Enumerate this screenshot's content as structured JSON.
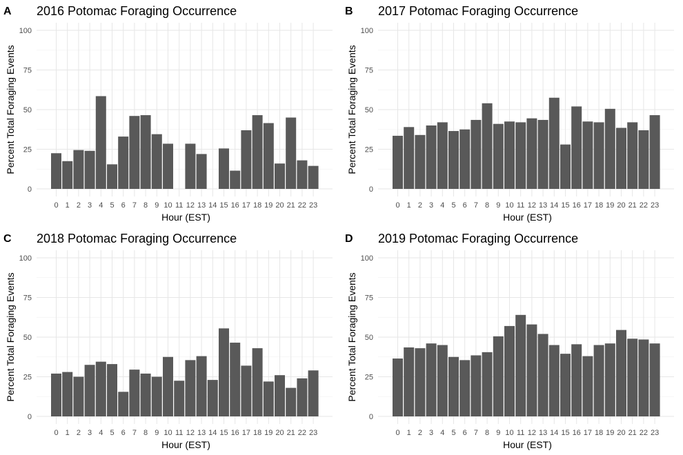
{
  "chart_data": [
    {
      "panel_label": "A",
      "type": "bar",
      "title": "2016 Potomac Foraging Occurrence",
      "xlabel": "Hour (EST)",
      "ylabel": "Percent Total Foraging Events",
      "categories": [
        "0",
        "1",
        "2",
        "3",
        "4",
        "5",
        "6",
        "7",
        "8",
        "9",
        "10",
        "11",
        "12",
        "13",
        "14",
        "15",
        "16",
        "17",
        "18",
        "19",
        "20",
        "21",
        "22",
        "23"
      ],
      "values": [
        22.5,
        17.5,
        24.5,
        24,
        58.5,
        15.5,
        33,
        46,
        46.5,
        34.5,
        28.5,
        null,
        28.5,
        22,
        null,
        25.5,
        11.5,
        37,
        46.5,
        41.5,
        16,
        45,
        18,
        14.5
      ],
      "ylim": [
        0,
        100
      ],
      "yticks": [
        0,
        25,
        50,
        75,
        100
      ],
      "bar_color": "#595959",
      "grid": true
    },
    {
      "panel_label": "B",
      "type": "bar",
      "title": "2017 Potomac Foraging Occurrence",
      "xlabel": "Hour (EST)",
      "ylabel": "Percent Total Foraging Events",
      "categories": [
        "0",
        "1",
        "2",
        "3",
        "4",
        "5",
        "6",
        "7",
        "8",
        "9",
        "10",
        "11",
        "12",
        "13",
        "14",
        "15",
        "16",
        "17",
        "18",
        "19",
        "20",
        "21",
        "22",
        "23"
      ],
      "values": [
        33.5,
        39,
        34,
        40,
        42,
        36.5,
        37.5,
        43.5,
        54,
        41,
        42.5,
        42,
        44.5,
        43.5,
        57.5,
        28,
        52,
        42.5,
        42,
        50.5,
        38.5,
        42,
        37,
        46.5
      ],
      "ylim": [
        0,
        100
      ],
      "yticks": [
        0,
        25,
        50,
        75,
        100
      ],
      "bar_color": "#595959",
      "grid": true
    },
    {
      "panel_label": "C",
      "type": "bar",
      "title": "2018 Potomac Foraging Occurrence",
      "xlabel": "Hour (EST)",
      "ylabel": "Percent Total Foraging Events",
      "categories": [
        "0",
        "1",
        "2",
        "3",
        "4",
        "5",
        "6",
        "7",
        "8",
        "9",
        "10",
        "11",
        "12",
        "13",
        "14",
        "15",
        "16",
        "17",
        "18",
        "19",
        "20",
        "21",
        "22",
        "23"
      ],
      "values": [
        27,
        28,
        25,
        32.5,
        34.5,
        33,
        15.5,
        29.5,
        27,
        25,
        37.5,
        22.5,
        35.5,
        38,
        23,
        55.5,
        46.5,
        32,
        43,
        22,
        26,
        18,
        24,
        29
      ],
      "ylim": [
        0,
        100
      ],
      "yticks": [
        0,
        25,
        50,
        75,
        100
      ],
      "bar_color": "#595959",
      "grid": true
    },
    {
      "panel_label": "D",
      "type": "bar",
      "title": "2019 Potomac Foraging Occurrence",
      "xlabel": "Hour (EST)",
      "ylabel": "Percent Total Foraging Events",
      "categories": [
        "0",
        "1",
        "2",
        "3",
        "4",
        "5",
        "6",
        "7",
        "8",
        "9",
        "10",
        "11",
        "12",
        "13",
        "14",
        "15",
        "16",
        "17",
        "18",
        "19",
        "20",
        "21",
        "22",
        "23"
      ],
      "values": [
        36.5,
        43.5,
        43,
        46,
        45,
        37.5,
        35.5,
        38.5,
        40.5,
        50.5,
        57,
        64,
        58,
        52,
        45,
        39.5,
        45.5,
        38,
        45,
        46,
        54.5,
        49,
        48.5,
        46
      ],
      "ylim": [
        0,
        100
      ],
      "yticks": [
        0,
        25,
        50,
        75,
        100
      ],
      "bar_color": "#595959",
      "grid": true
    }
  ]
}
